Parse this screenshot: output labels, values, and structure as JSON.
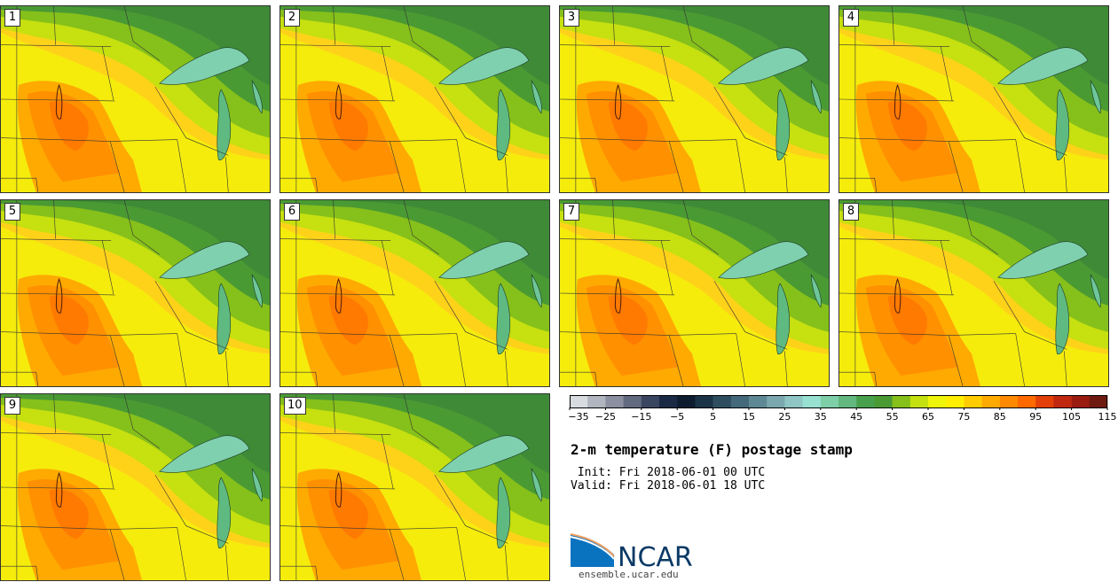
{
  "panels": [
    {
      "label": "1"
    },
    {
      "label": "2"
    },
    {
      "label": "3"
    },
    {
      "label": "4"
    },
    {
      "label": "5"
    },
    {
      "label": "6"
    },
    {
      "label": "7"
    },
    {
      "label": "8"
    },
    {
      "label": "9"
    },
    {
      "label": "10"
    }
  ],
  "colorbar": {
    "colors": [
      "#d8dbe0",
      "#b0b5bf",
      "#8a90a0",
      "#626a80",
      "#3a4660",
      "#1b2a44",
      "#0e1c30",
      "#1b3346",
      "#2e4e60",
      "#44697a",
      "#5e8894",
      "#7aa8ae",
      "#8fc6c4",
      "#98e0d2",
      "#7ecfa8",
      "#62b87e",
      "#48a04c",
      "#4a9a34",
      "#86c01a",
      "#c4e010",
      "#eef40a",
      "#ffee00",
      "#ffcc00",
      "#ffaa00",
      "#ff8a00",
      "#ff6a00",
      "#e24008",
      "#c02810",
      "#9a1c10",
      "#6e1a10"
    ],
    "tick_labels": [
      "−35",
      "−25",
      "−15",
      "−5",
      "5",
      "15",
      "25",
      "35",
      "45",
      "55",
      "65",
      "75",
      "85",
      "95",
      "105",
      "115"
    ]
  },
  "title": "2-m temperature (F) postage stamp",
  "init_line": " Init: Fri 2018-06-01 00 UTC",
  "valid_line": "Valid: Fri 2018-06-01 18 UTC",
  "logo": {
    "text": "NCAR",
    "url": "ensemble.ucar.edu"
  }
}
